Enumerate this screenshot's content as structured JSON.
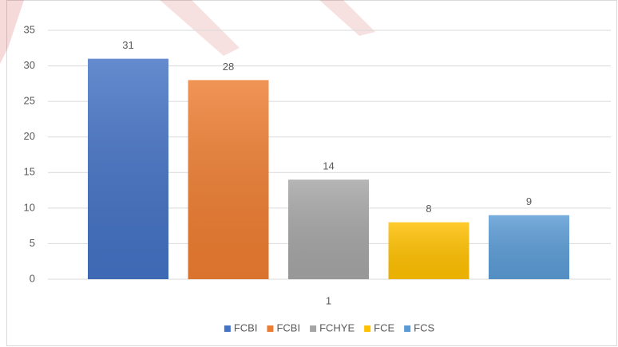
{
  "chart_data": {
    "type": "bar",
    "categories": [
      "1"
    ],
    "series": [
      {
        "name": "FCBI",
        "color": "#4472c4",
        "values": [
          31
        ]
      },
      {
        "name": "FCBI",
        "color": "#ed7d31",
        "values": [
          28
        ]
      },
      {
        "name": "FCHYE",
        "color": "#a5a5a5",
        "values": [
          14
        ]
      },
      {
        "name": "FCE",
        "color": "#ffc000",
        "values": [
          8
        ]
      },
      {
        "name": "FCS",
        "color": "#5b9bd5",
        "values": [
          9
        ]
      }
    ],
    "ylim": [
      0,
      35
    ],
    "yticks": [
      0,
      5,
      10,
      15,
      20,
      25,
      30,
      35
    ],
    "grid": true,
    "legend": "bottom"
  }
}
